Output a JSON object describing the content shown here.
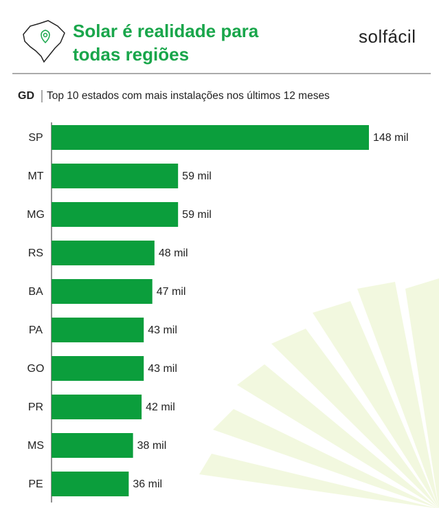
{
  "header": {
    "title": "Solar é realidade para todas regiões",
    "brand": "solfácil"
  },
  "chart_data": {
    "type": "bar",
    "orientation": "horizontal",
    "subtitle_tag": "GD",
    "subtitle": "Top 10 estados com mais instalações nos últimos 12 meses",
    "categories": [
      "SP",
      "MT",
      "MG",
      "RS",
      "BA",
      "PA",
      "GO",
      "PR",
      "MS",
      "PE"
    ],
    "values": [
      148,
      59,
      59,
      48,
      47,
      43,
      43,
      42,
      38,
      36
    ],
    "value_labels": [
      "148 mil",
      "59 mil",
      "59 mil",
      "48 mil",
      "47 mil",
      "43 mil",
      "43 mil",
      "42 mil",
      "38 mil",
      "36 mil"
    ],
    "color": "#0b9e3c"
  }
}
